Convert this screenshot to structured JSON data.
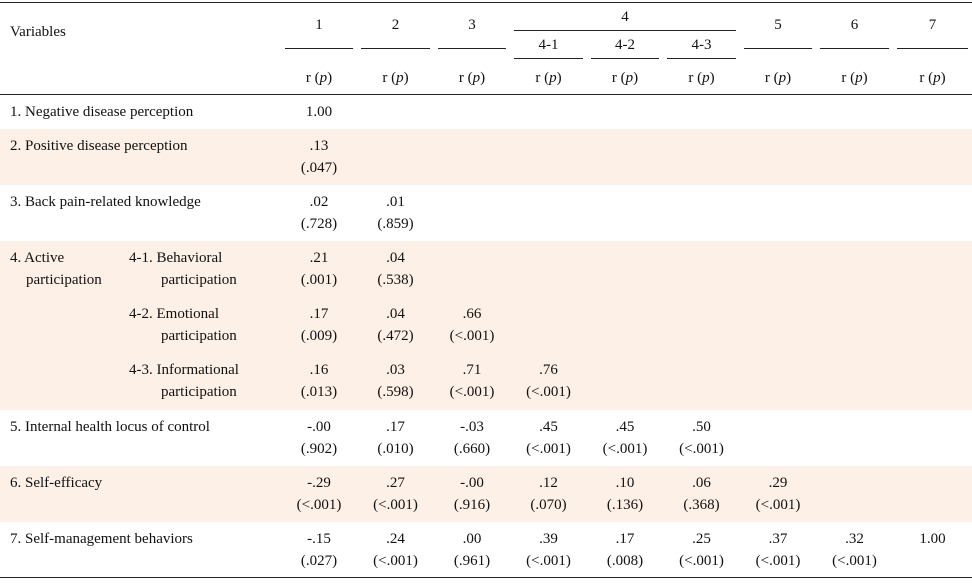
{
  "header": {
    "variables_label": "Variables",
    "col_numbers": [
      "1",
      "2",
      "3",
      "4",
      "5",
      "6",
      "7"
    ],
    "sub_cols": [
      "4-1",
      "4-2",
      "4-3"
    ],
    "stat_label_r": "r (",
    "stat_label_p": "p",
    "stat_label_close": ")"
  },
  "rows": {
    "r1": {
      "label": "1. Negative disease perception",
      "c1": [
        "1.00",
        ""
      ]
    },
    "r2": {
      "label": "2. Positive disease perception",
      "c1": [
        ".13",
        "(.047)"
      ]
    },
    "r3": {
      "label": "3. Back pain-related knowledge",
      "c1": [
        ".02",
        "(.728)"
      ],
      "c2": [
        ".01",
        "(.859)"
      ]
    },
    "r4": {
      "label_line1": "4. Active",
      "label_line2": "participation",
      "s1": {
        "line1": "4-1. Behavioral",
        "line2": "participation",
        "c1": [
          ".21",
          "(.001)"
        ],
        "c2": [
          ".04",
          "(.538)"
        ]
      },
      "s2": {
        "line1": "4-2. Emotional",
        "line2": "participation",
        "c1": [
          ".17",
          "(.009)"
        ],
        "c2": [
          ".04",
          "(.472)"
        ],
        "c3": [
          ".66",
          "(<.001)"
        ]
      },
      "s3": {
        "line1": "4-3. Informational",
        "line2": "participation",
        "c1": [
          ".16",
          "(.013)"
        ],
        "c2": [
          ".03",
          "(.598)"
        ],
        "c3": [
          ".71",
          "(<.001)"
        ],
        "c41": [
          ".76",
          "(<.001)"
        ]
      }
    },
    "r5": {
      "label": "5. Internal health locus of control",
      "c1": [
        "-.00",
        "(.902)"
      ],
      "c2": [
        ".17",
        "(.010)"
      ],
      "c3": [
        "-.03",
        "(.660)"
      ],
      "c41": [
        ".45",
        "(<.001)"
      ],
      "c42": [
        ".45",
        "(<.001)"
      ],
      "c43": [
        ".50",
        "(<.001)"
      ]
    },
    "r6": {
      "label": "6. Self-efficacy",
      "c1": [
        "-.29",
        "(<.001)"
      ],
      "c2": [
        ".27",
        "(<.001)"
      ],
      "c3": [
        "-.00",
        "(.916)"
      ],
      "c41": [
        ".12",
        "(.070)"
      ],
      "c42": [
        ".10",
        "(.136)"
      ],
      "c43": [
        ".06",
        "(.368)"
      ],
      "c5": [
        ".29",
        "(<.001)"
      ]
    },
    "r7": {
      "label": "7. Self-management behaviors",
      "c1": [
        "-.15",
        "(.027)"
      ],
      "c2": [
        ".24",
        "(<.001)"
      ],
      "c3": [
        ".00",
        "(.961)"
      ],
      "c41": [
        ".39",
        "(<.001)"
      ],
      "c42": [
        ".17",
        "(.008)"
      ],
      "c43": [
        ".25",
        "(<.001)"
      ],
      "c5": [
        ".37",
        "(<.001)"
      ],
      "c6": [
        ".32",
        "(<.001)"
      ],
      "c7": [
        "1.00",
        ""
      ]
    }
  }
}
